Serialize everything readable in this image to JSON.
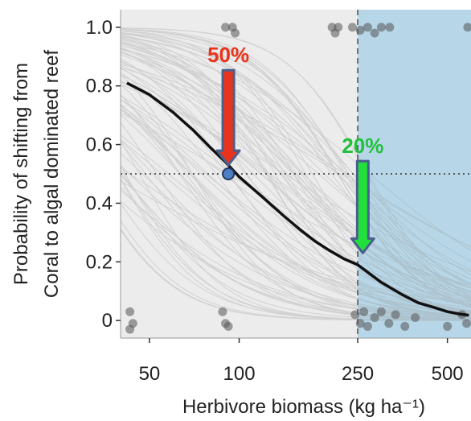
{
  "chart_data": {
    "type": "line",
    "xlabel": "Herbivore biomass (kg ha⁻¹)",
    "ylabel_lines": [
      "Probability of shifting from",
      "Coral to algal dominated reef"
    ],
    "x_scale": "log",
    "xlim": [
      40,
      600
    ],
    "ylim": [
      -0.06,
      1.06
    ],
    "x_ticks": [
      50,
      100,
      250,
      500
    ],
    "y_ticks": [
      0,
      0.2,
      0.4,
      0.6,
      0.8,
      1.0
    ],
    "x_tick_labels": [
      "50",
      "100",
      "250",
      "500"
    ],
    "y_tick_labels": [
      "0",
      "0.2",
      "0.4",
      "0.6",
      "0.8",
      "1.0"
    ],
    "grid": false,
    "shaded_region_x": [
      250,
      600
    ],
    "threshold_vertical_x": 250,
    "threshold_horizontal_y": 0.5,
    "series": [
      {
        "x": [
          42,
          50,
          60,
          70,
          80,
          90,
          100,
          120,
          140,
          160,
          180,
          200,
          225,
          250,
          300,
          350,
          400,
          450,
          500,
          550,
          590
        ],
        "y": [
          0.81,
          0.77,
          0.71,
          0.65,
          0.59,
          0.54,
          0.49,
          0.42,
          0.36,
          0.31,
          0.27,
          0.24,
          0.21,
          0.19,
          0.13,
          0.09,
          0.06,
          0.045,
          0.03,
          0.022,
          0.018
        ]
      }
    ],
    "highlight_point": {
      "x": 92,
      "y": 0.5
    },
    "observations_top": [
      {
        "x": 90,
        "y": 1.0
      },
      {
        "x": 95,
        "y": 1.0
      },
      {
        "x": 97,
        "y": 0.98
      },
      {
        "x": 205,
        "y": 1.0
      },
      {
        "x": 210,
        "y": 0.98
      },
      {
        "x": 215,
        "y": 1.0
      },
      {
        "x": 240,
        "y": 1.0
      },
      {
        "x": 255,
        "y": 0.99
      },
      {
        "x": 270,
        "y": 1.0
      },
      {
        "x": 285,
        "y": 0.98
      },
      {
        "x": 300,
        "y": 1.0
      },
      {
        "x": 320,
        "y": 1.0
      },
      {
        "x": 585,
        "y": 1.0
      }
    ],
    "observations_bottom": [
      {
        "x": 43,
        "y": 0.03
      },
      {
        "x": 44,
        "y": -0.01
      },
      {
        "x": 43,
        "y": -0.03
      },
      {
        "x": 88,
        "y": 0.03
      },
      {
        "x": 90,
        "y": -0.01
      },
      {
        "x": 92,
        "y": -0.02
      },
      {
        "x": 245,
        "y": 0.02
      },
      {
        "x": 255,
        "y": -0.01
      },
      {
        "x": 262,
        "y": 0.03
      },
      {
        "x": 270,
        "y": -0.02
      },
      {
        "x": 285,
        "y": 0.01
      },
      {
        "x": 300,
        "y": 0.03
      },
      {
        "x": 318,
        "y": -0.01
      },
      {
        "x": 335,
        "y": 0.02
      },
      {
        "x": 360,
        "y": -0.02
      },
      {
        "x": 390,
        "y": 0.01
      },
      {
        "x": 500,
        "y": -0.02
      },
      {
        "x": 560,
        "y": 0.02
      },
      {
        "x": 580,
        "y": -0.01
      }
    ],
    "annotations": [
      {
        "text": "50%",
        "x": 92,
        "y": 0.87,
        "color": "#e8341c",
        "arrow_color": "#e8341c",
        "arrow_to_y": 0.53
      },
      {
        "text": "20%",
        "x": 260,
        "y": 0.56,
        "color": "#22c03c",
        "arrow_color": "#22e03c",
        "arrow_to_y": 0.23
      }
    ],
    "colors": {
      "fit_line": "#111111",
      "posterior_lines": "#9a9a9a",
      "shade": "#b7d7e8",
      "point_fill": "#4f7fc0",
      "point_stroke": "#1f3a66",
      "arrow_outline": "#4a5f8c",
      "observation": "#555555"
    }
  }
}
